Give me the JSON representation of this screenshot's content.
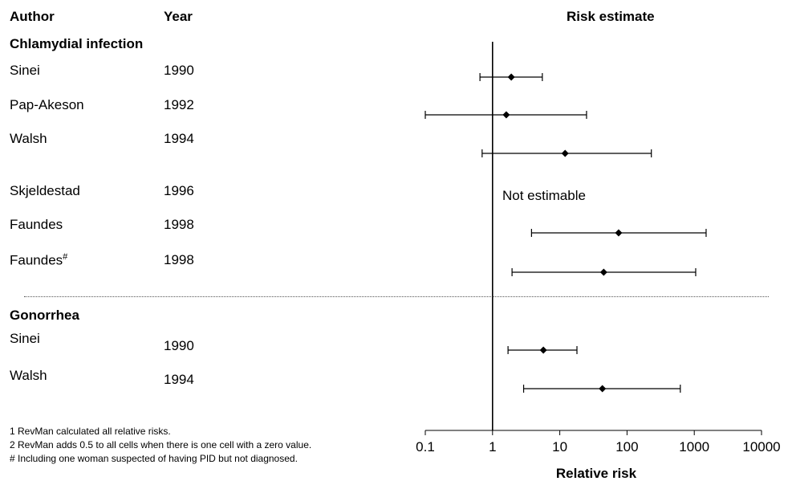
{
  "headers": {
    "author": "Author",
    "year": "Year",
    "risk": "Risk estimate"
  },
  "sections": [
    {
      "name": "Chlamydial infection"
    },
    {
      "name": "Gonorrhea"
    }
  ],
  "rows": [
    {
      "author": "Sinei",
      "year": "1990"
    },
    {
      "author": "Pap-Akeson",
      "year": "1992"
    },
    {
      "author": "Walsh",
      "year": "1994"
    },
    {
      "author": "Skjeldestad",
      "year": "1996"
    },
    {
      "author": "Faundes",
      "year": "1998"
    },
    {
      "author": "Faundes",
      "author_sup": "#",
      "year": "1998"
    },
    {
      "author": "Sinei",
      "year": "1990"
    },
    {
      "author": "Walsh",
      "year": "1994"
    }
  ],
  "not_estimable": "Not estimable",
  "footnotes": [
    "1 RevMan calculated all relative risks.",
    "2 RevMan adds 0.5 to all cells when there is one cell with a zero value.",
    "# Including one woman suspected of having PID but not diagnosed."
  ],
  "chart_data": {
    "type": "forest",
    "scale": "log",
    "xlim": [
      0.1,
      10000
    ],
    "reference_line": 1,
    "xticks": [
      0.1,
      1,
      10,
      100,
      1000,
      10000
    ],
    "xtick_labels": [
      "0.1",
      "1",
      "10",
      "100",
      "1000",
      "10000"
    ],
    "xlabel": "Relative risk",
    "series": [
      {
        "name": "Sinei 1990 (Chlamydial)",
        "estimate": 1.9,
        "lower": 0.65,
        "upper": 5.5
      },
      {
        "name": "Pap-Akeson 1992",
        "estimate": 1.6,
        "lower": 0.1,
        "upper": 25
      },
      {
        "name": "Walsh 1994 (Chlamydial)",
        "estimate": 12,
        "lower": 0.7,
        "upper": 230
      },
      {
        "name": "Skjeldestad 1996",
        "estimate": null,
        "lower": null,
        "upper": null
      },
      {
        "name": "Faundes 1998",
        "estimate": 75,
        "lower": 3.8,
        "upper": 1500
      },
      {
        "name": "Faundes# 1998",
        "estimate": 45,
        "lower": 1.95,
        "upper": 1050
      },
      {
        "name": "Sinei 1990 (Gonorrhea)",
        "estimate": 5.7,
        "lower": 1.7,
        "upper": 18
      },
      {
        "name": "Walsh 1994 (Gonorrhea)",
        "estimate": 43,
        "lower": 2.9,
        "upper": 620
      }
    ]
  }
}
